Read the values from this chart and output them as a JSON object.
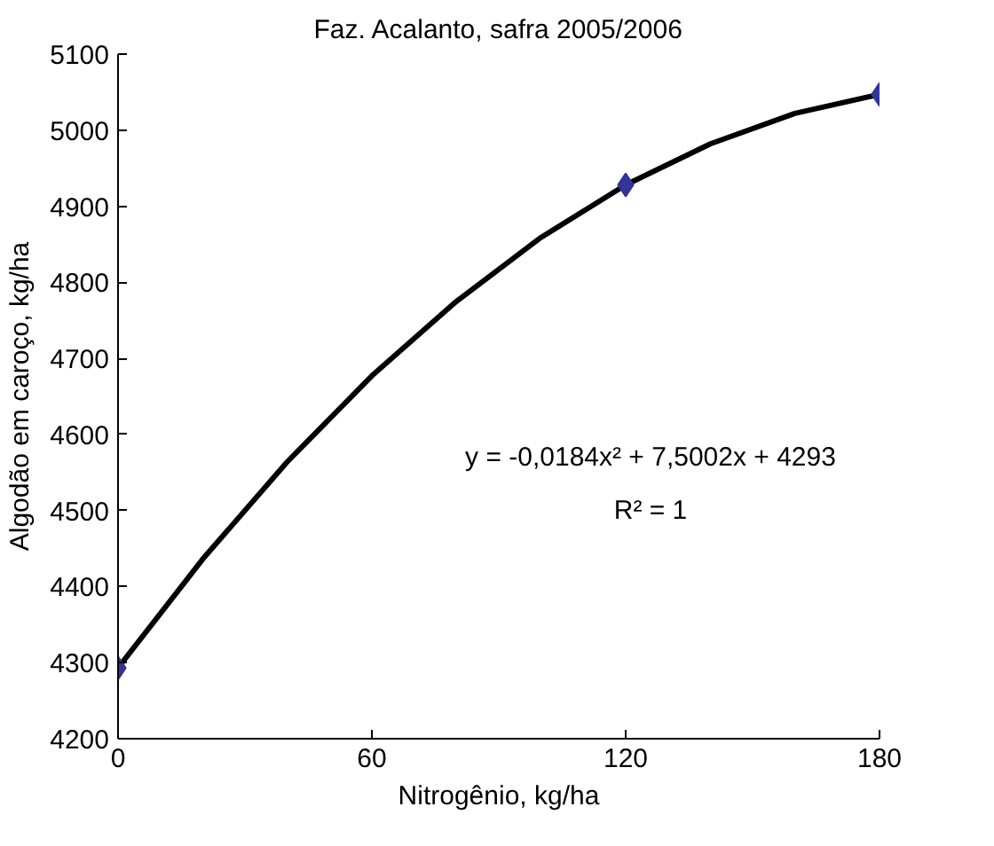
{
  "chart_data": {
    "type": "scatter",
    "title": "Faz. Acalanto, safra 2005/2006",
    "xlabel": "Nitrogênio, kg/ha",
    "ylabel": "Algodão em caroço, kg/ha",
    "series": [
      {
        "color": "#333399",
        "marker": "diamond",
        "x": [
          0,
          120,
          180
        ],
        "values": [
          4293,
          4928,
          5047
        ]
      },
      {
        "type": "line",
        "color": "#000000",
        "x": [
          0,
          20,
          40,
          60,
          80,
          100,
          120,
          140,
          160,
          180
        ],
        "values": [
          4293,
          4436,
          4564,
          4677,
          4775,
          4859,
          4928,
          4982,
          5022,
          5047
        ]
      }
    ],
    "xlim": [
      0,
      180
    ],
    "xticks": [
      0,
      60,
      120,
      180
    ],
    "ylim": [
      4200,
      5100
    ],
    "yticks": [
      4200,
      4300,
      4400,
      4500,
      4600,
      4700,
      4800,
      4900,
      5000,
      5100
    ],
    "grid": false,
    "annotations": [
      "y = -0,0184x² + 7,5002x + 4293",
      "R² = 1"
    ]
  }
}
